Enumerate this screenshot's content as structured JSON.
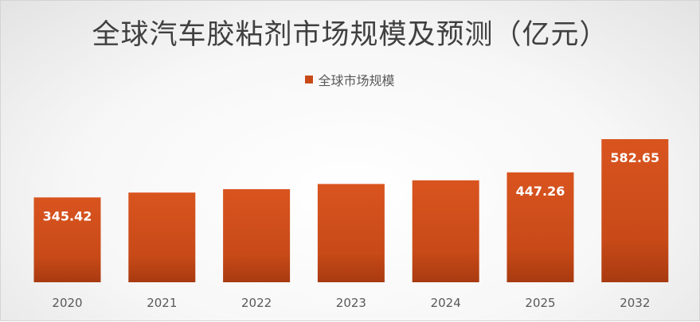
{
  "chart_data": {
    "type": "bar",
    "title": "全球汽车胶粘剂市场规模及预测（亿元）",
    "categories": [
      "2020",
      "2021",
      "2022",
      "2023",
      "2024",
      "2025",
      "2032"
    ],
    "series": [
      {
        "name": "全球市场规模",
        "values": [
          345.42,
          365,
          379,
          400,
          415,
          447.26,
          582.65
        ],
        "data_labels": [
          "345.42",
          "",
          "",
          "",
          "",
          "447.26",
          "582.65"
        ]
      }
    ],
    "colors": {
      "bar": "#c84a18",
      "bar_top": "#d9541f",
      "bar_bottom": "#a83a10"
    },
    "grid": false,
    "legend": "top-center"
  }
}
